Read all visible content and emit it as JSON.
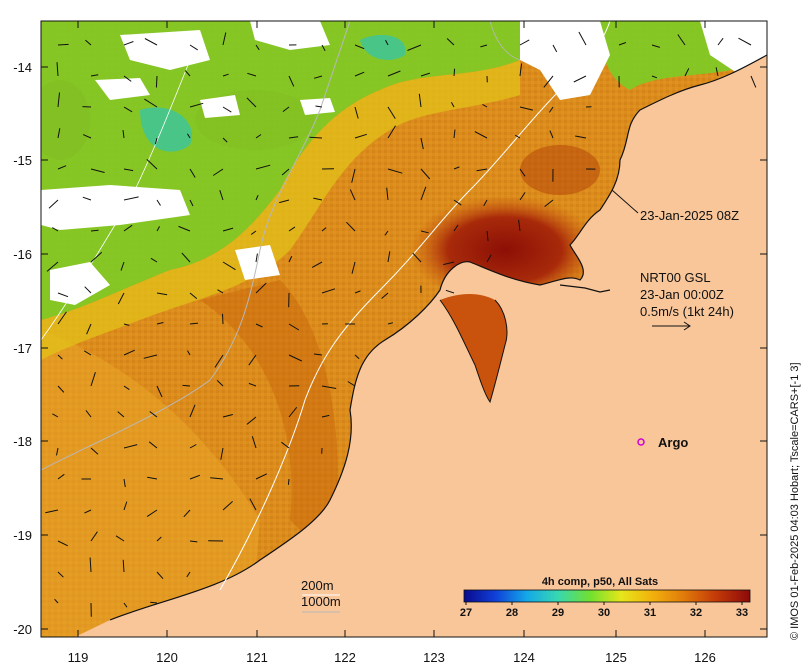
{
  "map": {
    "x_ticks": [
      "119",
      "120",
      "121",
      "122",
      "123",
      "124",
      "125",
      "126"
    ],
    "y_ticks": [
      "-14",
      "-15",
      "-16",
      "-17",
      "-18",
      "-19",
      "-20"
    ],
    "colors": {
      "land": "#f9c69a",
      "cloud": "#ffffff",
      "sst_warm": "#d98a1a",
      "sst_hot": "#9a1808",
      "sst_cool": "#8ed11f"
    }
  },
  "annotations": {
    "image_time": "23-Jan-2025 08Z",
    "current_title": "NRT00 GSL",
    "current_time": "23-Jan 00:00Z",
    "current_scale": "0.5m/s (1kt 24h)",
    "argo_label": "Argo",
    "isobath_200": "200m",
    "isobath_1000": "1000m"
  },
  "colorbar": {
    "title": "4h comp, p50, All Sats",
    "ticks": [
      "27",
      "28",
      "29",
      "30",
      "31",
      "32",
      "33"
    ],
    "min": 26.5,
    "max": 33.5,
    "colors": [
      "#0a0a8c",
      "#1040d8",
      "#14a8e8",
      "#38d8b0",
      "#70e030",
      "#e6e61a",
      "#f2b00c",
      "#e07a0a",
      "#c43a08",
      "#8c0a0a"
    ]
  },
  "credit": "© IMOS 01-Feb-2025 04:03 Hobart; Tscale=CARS+[-1 3]"
}
